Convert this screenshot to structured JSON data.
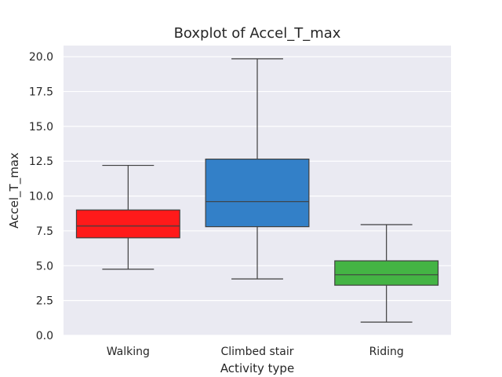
{
  "chart_data": {
    "type": "boxplot",
    "title": "Boxplot of Accel_T_max",
    "xlabel": "Activity type",
    "ylabel": "Accel_T_max",
    "ylim": [
      0,
      20.8
    ],
    "yticks": [
      "0.0",
      "2.5",
      "5.0",
      "7.5",
      "10.0",
      "12.5",
      "15.0",
      "17.5",
      "20.0"
    ],
    "grid": true,
    "categories": [
      "Walking",
      "Climbed stair",
      "Riding"
    ],
    "boxes": [
      {
        "category": "Walking",
        "whisker_low": 4.75,
        "q1": 7.0,
        "median": 7.85,
        "q3": 9.0,
        "whisker_high": 12.2,
        "color": "#ff1a1a"
      },
      {
        "category": "Climbed stair",
        "whisker_low": 4.05,
        "q1": 7.8,
        "median": 9.6,
        "q3": 12.65,
        "whisker_high": 19.85,
        "color": "#3380c8"
      },
      {
        "category": "Riding",
        "whisker_low": 0.95,
        "q1": 3.6,
        "median": 4.35,
        "q3": 5.35,
        "whisker_high": 7.95,
        "color": "#44b444"
      }
    ],
    "background": "#eaeaf2",
    "line_color": "#3f3f3f"
  }
}
